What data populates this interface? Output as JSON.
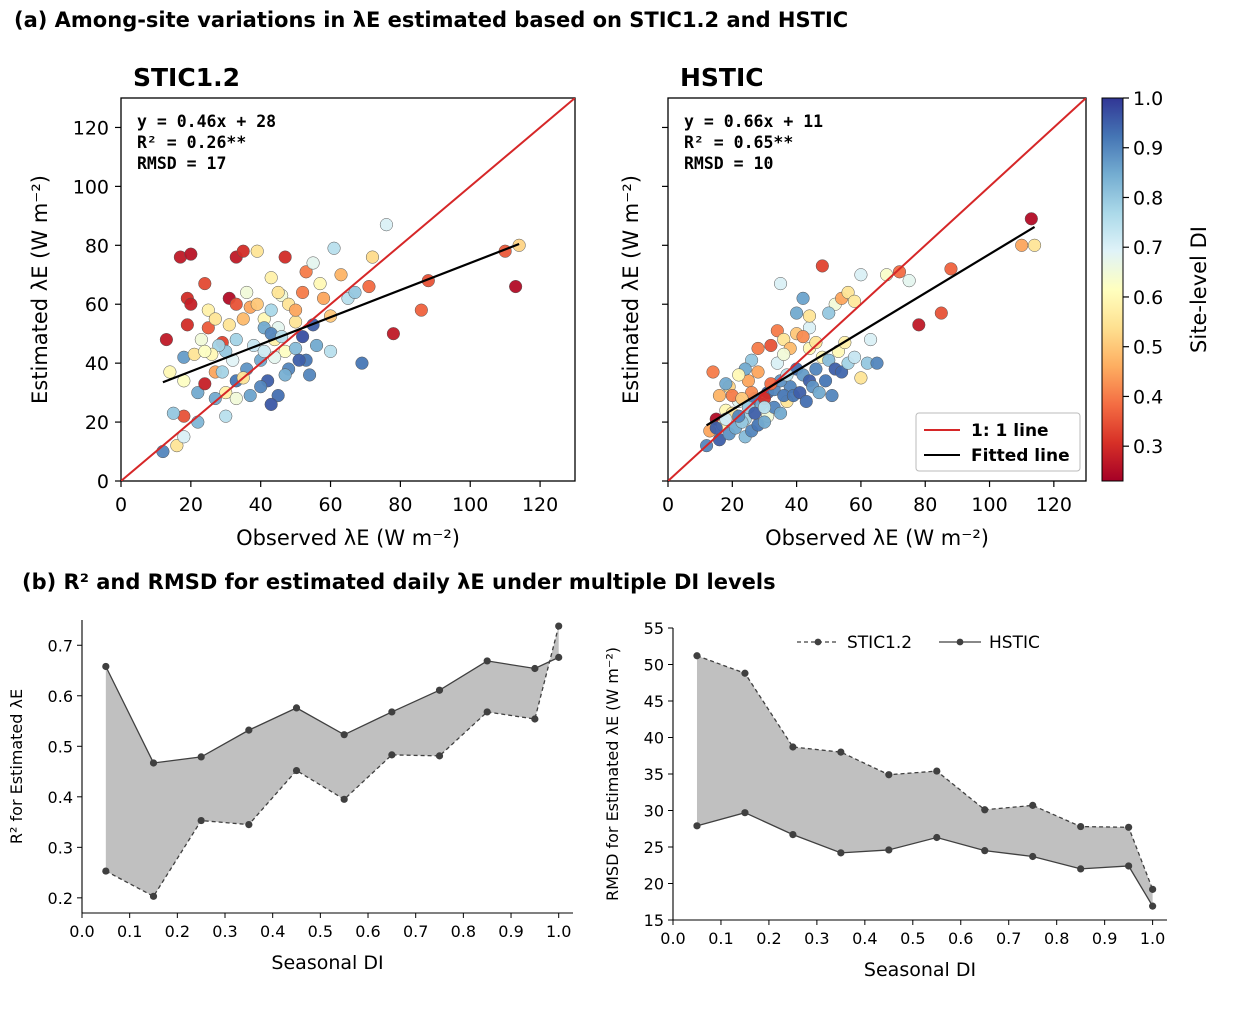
{
  "panel_a_title": "(a) Among-site variations in λE estimated based on STIC1.2 and HSTIC",
  "panel_b_title": "(b) R² and RMSD for estimated daily λE under multiple DI levels",
  "colors": {
    "one_to_one_line": "#d62728",
    "fitted_line": "#000000",
    "fill_band": "#c0c0c0",
    "line_points": "#404040"
  },
  "colorbar": {
    "label": "Site-level DI",
    "colormap": "RdYlBu",
    "range": [
      0.23,
      1.0
    ],
    "ticks": [
      "0.3",
      "0.4",
      "0.5",
      "0.6",
      "0.7",
      "0.8",
      "0.9",
      "1.0"
    ]
  },
  "legend_a": {
    "one_to_one": "1: 1 line",
    "fitted": "Fitted line"
  },
  "legend_b": {
    "stic": "STIC1.2",
    "hstic": "HSTIC"
  },
  "chart_data": [
    {
      "id": "stic_scatter",
      "type": "scatter",
      "title": "STIC1.2",
      "xlabel": "Observed λE (W m⁻²)",
      "ylabel": "Estimated λE (W m⁻²)",
      "xlim": [
        0,
        130
      ],
      "ylim": [
        0,
        130
      ],
      "xticks": [
        0,
        20,
        40,
        60,
        80,
        100,
        120
      ],
      "yticks": [
        0,
        20,
        40,
        60,
        80,
        100,
        120
      ],
      "stats": [
        "y = 0.46x + 28",
        "R² = 0.26**",
        "RMSD = 17"
      ],
      "fit": {
        "slope": 0.46,
        "intercept": 28,
        "x_range": [
          12,
          114
        ]
      },
      "points": [
        [
          17,
          76,
          0.27
        ],
        [
          20,
          77,
          0.26
        ],
        [
          33,
          76,
          0.27
        ],
        [
          35,
          78,
          0.3
        ],
        [
          47,
          76,
          0.3
        ],
        [
          19,
          62,
          0.3
        ],
        [
          20,
          60,
          0.28
        ],
        [
          24,
          67,
          0.34
        ],
        [
          31,
          62,
          0.25
        ],
        [
          33,
          60,
          0.35
        ],
        [
          13,
          48,
          0.27
        ],
        [
          19,
          53,
          0.3
        ],
        [
          25,
          52,
          0.36
        ],
        [
          29,
          47,
          0.33
        ],
        [
          18,
          42,
          0.87
        ],
        [
          14,
          37,
          0.6
        ],
        [
          18,
          34,
          0.62
        ],
        [
          21,
          43,
          0.55
        ],
        [
          27,
          37,
          0.45
        ],
        [
          30,
          30,
          0.58
        ],
        [
          22,
          30,
          0.85
        ],
        [
          24,
          33,
          0.28
        ],
        [
          27,
          28,
          0.85
        ],
        [
          29,
          37,
          0.78
        ],
        [
          18,
          22,
          0.35
        ],
        [
          22,
          20,
          0.83
        ],
        [
          15,
          23,
          0.8
        ],
        [
          12,
          10,
          0.9
        ],
        [
          16,
          12,
          0.55
        ],
        [
          18,
          15,
          0.7
        ],
        [
          30,
          22,
          0.75
        ],
        [
          33,
          34,
          0.92
        ],
        [
          36,
          38,
          0.88
        ],
        [
          38,
          46,
          0.73
        ],
        [
          40,
          41,
          0.85
        ],
        [
          42,
          34,
          0.95
        ],
        [
          44,
          48,
          0.58
        ],
        [
          45,
          52,
          0.68
        ],
        [
          47,
          44,
          0.62
        ],
        [
          48,
          38,
          0.9
        ],
        [
          50,
          45,
          0.82
        ],
        [
          52,
          49,
          0.97
        ],
        [
          53,
          41,
          0.92
        ],
        [
          54,
          36,
          0.9
        ],
        [
          55,
          53,
          0.95
        ],
        [
          50,
          54,
          0.55
        ],
        [
          51,
          41,
          0.95
        ],
        [
          47,
          36,
          0.84
        ],
        [
          45,
          29,
          0.93
        ],
        [
          43,
          26,
          0.96
        ],
        [
          40,
          32,
          0.9
        ],
        [
          37,
          29,
          0.86
        ],
        [
          35,
          35,
          0.55
        ],
        [
          32,
          41,
          0.69
        ],
        [
          30,
          44,
          0.8
        ],
        [
          28,
          46,
          0.78
        ],
        [
          26,
          43,
          0.6
        ],
        [
          24,
          44,
          0.62
        ],
        [
          23,
          48,
          0.65
        ],
        [
          36,
          64,
          0.65
        ],
        [
          37,
          59,
          0.45
        ],
        [
          39,
          60,
          0.5
        ],
        [
          41,
          55,
          0.6
        ],
        [
          43,
          58,
          0.77
        ],
        [
          46,
          63,
          0.65
        ],
        [
          48,
          60,
          0.55
        ],
        [
          50,
          58,
          0.45
        ],
        [
          52,
          64,
          0.4
        ],
        [
          53,
          71,
          0.4
        ],
        [
          55,
          74,
          0.68
        ],
        [
          57,
          67,
          0.6
        ],
        [
          58,
          62,
          0.45
        ],
        [
          60,
          56,
          0.5
        ],
        [
          61,
          79,
          0.75
        ],
        [
          63,
          70,
          0.47
        ],
        [
          65,
          62,
          0.75
        ],
        [
          67,
          64,
          0.8
        ],
        [
          69,
          40,
          0.92
        ],
        [
          71,
          66,
          0.38
        ],
        [
          72,
          76,
          0.53
        ],
        [
          76,
          87,
          0.7
        ],
        [
          78,
          50,
          0.27
        ],
        [
          86,
          58,
          0.37
        ],
        [
          88,
          68,
          0.35
        ],
        [
          110,
          78,
          0.36
        ],
        [
          113,
          66,
          0.25
        ],
        [
          114,
          80,
          0.52
        ],
        [
          60,
          44,
          0.75
        ],
        [
          56,
          46,
          0.85
        ],
        [
          39,
          78,
          0.55
        ],
        [
          33,
          48,
          0.78
        ],
        [
          35,
          55,
          0.48
        ],
        [
          31,
          53,
          0.55
        ],
        [
          43,
          69,
          0.58
        ],
        [
          45,
          64,
          0.55
        ],
        [
          25,
          58,
          0.58
        ],
        [
          27,
          55,
          0.55
        ],
        [
          41,
          52,
          0.85
        ],
        [
          43,
          50,
          0.9
        ],
        [
          46,
          49,
          0.75
        ],
        [
          33,
          28,
          0.65
        ],
        [
          41,
          44,
          0.72
        ],
        [
          44,
          42,
          0.68
        ]
      ]
    },
    {
      "id": "hstic_scatter",
      "type": "scatter",
      "title": "HSTIC",
      "xlabel": "Observed λE (W m⁻²)",
      "ylabel": "Estimated λE (W m⁻²)",
      "xlim": [
        0,
        130
      ],
      "ylim": [
        0,
        130
      ],
      "xticks": [
        0,
        20,
        40,
        60,
        80,
        100,
        120
      ],
      "yticks": [],
      "stats": [
        "y = 0.66x + 11",
        "R² = 0.65**",
        "RMSD = 10"
      ],
      "fit": {
        "slope": 0.66,
        "intercept": 11,
        "x_range": [
          12,
          114
        ]
      },
      "points": [
        [
          14,
          37,
          0.4
        ],
        [
          16,
          29,
          0.47
        ],
        [
          19,
          32,
          0.52
        ],
        [
          18,
          24,
          0.6
        ],
        [
          22,
          27,
          0.68
        ],
        [
          25,
          34,
          0.45
        ],
        [
          24,
          21,
          0.78
        ],
        [
          27,
          28,
          0.92
        ],
        [
          29,
          26,
          0.85
        ],
        [
          31,
          22,
          0.65
        ],
        [
          33,
          25,
          0.9
        ],
        [
          35,
          23,
          0.85
        ],
        [
          37,
          27,
          0.55
        ],
        [
          38,
          32,
          0.9
        ],
        [
          40,
          38,
          0.93
        ],
        [
          42,
          36,
          0.87
        ],
        [
          44,
          34,
          0.95
        ],
        [
          46,
          38,
          0.9
        ],
        [
          48,
          42,
          0.6
        ],
        [
          50,
          41,
          0.82
        ],
        [
          52,
          38,
          0.95
        ],
        [
          54,
          37,
          0.94
        ],
        [
          56,
          40,
          0.78
        ],
        [
          58,
          42,
          0.73
        ],
        [
          60,
          35,
          0.55
        ],
        [
          62,
          40,
          0.8
        ],
        [
          63,
          48,
          0.7
        ],
        [
          65,
          40,
          0.9
        ],
        [
          68,
          70,
          0.63
        ],
        [
          72,
          71,
          0.38
        ],
        [
          75,
          68,
          0.68
        ],
        [
          78,
          53,
          0.27
        ],
        [
          85,
          57,
          0.35
        ],
        [
          88,
          72,
          0.37
        ],
        [
          110,
          80,
          0.45
        ],
        [
          113,
          89,
          0.25
        ],
        [
          114,
          80,
          0.55
        ],
        [
          35,
          67,
          0.7
        ],
        [
          40,
          57,
          0.85
        ],
        [
          42,
          62,
          0.86
        ],
        [
          44,
          52,
          0.7
        ],
        [
          48,
          73,
          0.33
        ],
        [
          52,
          60,
          0.65
        ],
        [
          54,
          62,
          0.45
        ],
        [
          56,
          64,
          0.55
        ],
        [
          58,
          61,
          0.56
        ],
        [
          60,
          70,
          0.7
        ],
        [
          34,
          51,
          0.4
        ],
        [
          36,
          48,
          0.55
        ],
        [
          32,
          46,
          0.35
        ],
        [
          28,
          45,
          0.4
        ],
        [
          26,
          41,
          0.8
        ],
        [
          24,
          38,
          0.85
        ],
        [
          22,
          36,
          0.6
        ],
        [
          20,
          29,
          0.4
        ],
        [
          18,
          33,
          0.85
        ],
        [
          15,
          21,
          0.25
        ],
        [
          13,
          17,
          0.45
        ],
        [
          12,
          12,
          0.9
        ],
        [
          16,
          14,
          0.95
        ],
        [
          17,
          19,
          0.6
        ],
        [
          19,
          16,
          0.88
        ],
        [
          21,
          18,
          0.85
        ],
        [
          23,
          20,
          0.8
        ],
        [
          24,
          15,
          0.82
        ],
        [
          26,
          17,
          0.9
        ],
        [
          28,
          19,
          0.92
        ],
        [
          30,
          20,
          0.85
        ],
        [
          31,
          30,
          0.94
        ],
        [
          33,
          31,
          0.9
        ],
        [
          35,
          34,
          0.88
        ],
        [
          36,
          29,
          0.92
        ],
        [
          37,
          36,
          0.75
        ],
        [
          39,
          29,
          0.92
        ],
        [
          41,
          30,
          0.95
        ],
        [
          43,
          27,
          0.93
        ],
        [
          45,
          32,
          0.88
        ],
        [
          47,
          30,
          0.85
        ],
        [
          49,
          34,
          0.92
        ],
        [
          51,
          29,
          0.9
        ],
        [
          53,
          44,
          0.6
        ],
        [
          55,
          47,
          0.58
        ],
        [
          30,
          28,
          0.3
        ],
        [
          32,
          33,
          0.38
        ],
        [
          26,
          30,
          0.42
        ],
        [
          28,
          37,
          0.45
        ],
        [
          23,
          28,
          0.5
        ],
        [
          44,
          45,
          0.6
        ],
        [
          46,
          47,
          0.55
        ],
        [
          38,
          45,
          0.48
        ],
        [
          40,
          50,
          0.5
        ],
        [
          42,
          49,
          0.42
        ],
        [
          44,
          56,
          0.55
        ],
        [
          34,
          40,
          0.7
        ],
        [
          36,
          43,
          0.65
        ],
        [
          50,
          57,
          0.8
        ],
        [
          20,
          23,
          0.55
        ],
        [
          22,
          22,
          0.9
        ],
        [
          25,
          25,
          0.8
        ],
        [
          27,
          23,
          0.95
        ],
        [
          30,
          25,
          0.75
        ],
        [
          18,
          21,
          0.72
        ],
        [
          15,
          18,
          0.95
        ]
      ]
    },
    {
      "id": "r2_plot",
      "type": "line",
      "xlabel": "Seasonal DI",
      "ylabel": "R² for Estimated λE",
      "xlim": [
        0.0,
        1.03
      ],
      "ylim": [
        0.17,
        0.75
      ],
      "xticks": [
        "0.0",
        "0.1",
        "0.2",
        "0.3",
        "0.4",
        "0.5",
        "0.6",
        "0.7",
        "0.8",
        "0.9",
        "1.0"
      ],
      "yticks": [
        "0.2",
        "0.3",
        "0.4",
        "0.5",
        "0.6",
        "0.7"
      ],
      "x": [
        0.05,
        0.15,
        0.25,
        0.35,
        0.45,
        0.55,
        0.65,
        0.75,
        0.85,
        0.95,
        1.0
      ],
      "series": [
        {
          "name": "STIC1.2",
          "style": "dashed",
          "values": [
            0.253,
            0.203,
            0.353,
            0.345,
            0.452,
            0.395,
            0.483,
            0.481,
            0.568,
            0.554,
            0.738
          ]
        },
        {
          "name": "HSTIC",
          "style": "solid",
          "values": [
            0.658,
            0.467,
            0.479,
            0.532,
            0.576,
            0.523,
            0.568,
            0.611,
            0.669,
            0.654,
            0.676
          ]
        }
      ]
    },
    {
      "id": "rmsd_plot",
      "type": "line",
      "xlabel": "Seasonal DI",
      "ylabel": "RMSD for Estimated λE (W m⁻²)",
      "xlim": [
        0.0,
        1.03
      ],
      "ylim": [
        15,
        55
      ],
      "xticks": [
        "0.0",
        "0.1",
        "0.2",
        "0.3",
        "0.4",
        "0.5",
        "0.6",
        "0.7",
        "0.8",
        "0.9",
        "1.0"
      ],
      "yticks": [
        "15",
        "20",
        "25",
        "30",
        "35",
        "40",
        "45",
        "50",
        "55"
      ],
      "x": [
        0.05,
        0.15,
        0.25,
        0.35,
        0.45,
        0.55,
        0.65,
        0.75,
        0.85,
        0.95,
        1.0
      ],
      "series": [
        {
          "name": "STIC1.2",
          "style": "dashed",
          "values": [
            51.2,
            48.8,
            38.7,
            38.0,
            34.9,
            35.4,
            30.1,
            30.7,
            27.8,
            27.7,
            19.2
          ]
        },
        {
          "name": "HSTIC",
          "style": "solid",
          "values": [
            27.9,
            29.7,
            26.7,
            24.2,
            24.6,
            26.3,
            24.5,
            23.7,
            22.0,
            22.4,
            16.9
          ]
        }
      ]
    }
  ]
}
